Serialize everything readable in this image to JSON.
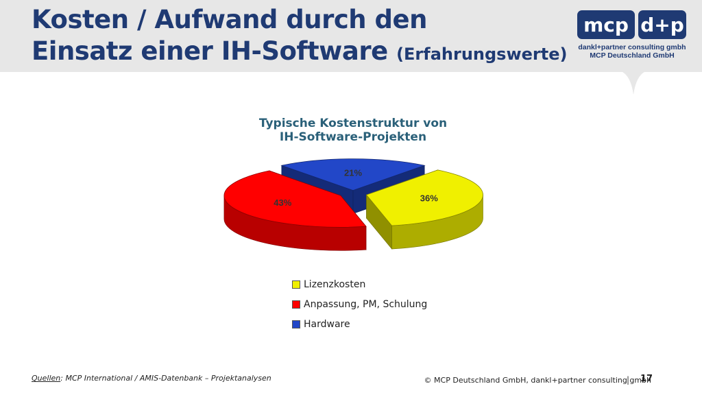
{
  "header": {
    "title_line1": "Kosten / Aufwand durch den",
    "title_line2": "Einsatz einer IH-Software",
    "title_sub": "(Erfahrungswerte)"
  },
  "logo": {
    "mcp": "mcp",
    "dp": "d+p",
    "line1": "dankl+partner consulting gmbh",
    "line2": "MCP Deutschland GmbH"
  },
  "chart_data": {
    "type": "pie",
    "title_lines": [
      "Typische Kostenstruktur von",
      "IH-Software-Projekten"
    ],
    "slices": [
      {
        "label": "Lizenzkosten",
        "value": 36,
        "display": "36%",
        "color": "#f0f000"
      },
      {
        "label": "Anpassung, PM, Schulung",
        "value": 43,
        "display": "43%",
        "color": "#ff0000"
      },
      {
        "label": "Hardware",
        "value": 21,
        "display": "21%",
        "color": "#2247c8"
      }
    ],
    "legend_position": "bottom",
    "exploded": true,
    "style": "3d"
  },
  "footer": {
    "source_label": "Quellen",
    "source_text": ": MCP International / AMIS-Datenbank – Projektanalysen",
    "copyright": "© MCP Deutschland GmbH, dankl+partner consulting gmbh",
    "separator": "|",
    "page": "17"
  }
}
